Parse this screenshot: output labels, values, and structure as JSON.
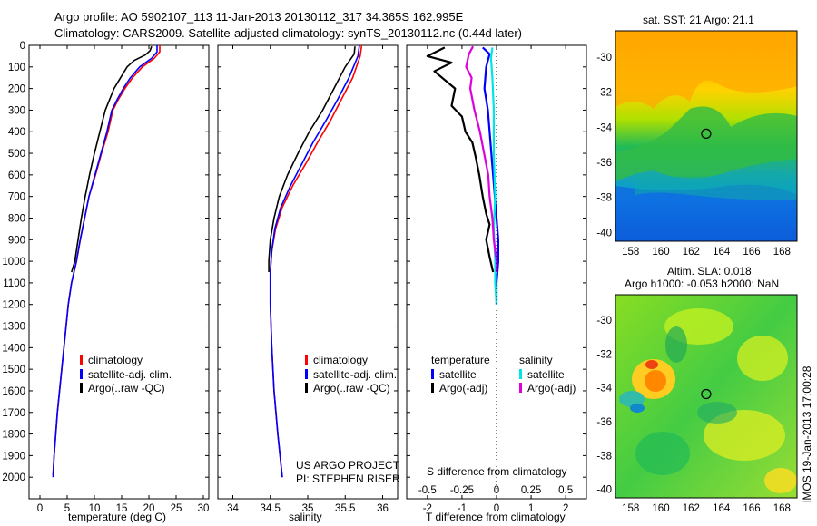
{
  "header": {
    "line1": "Argo profile: AO 5902107_113 11-Jan-2013 20130112_317 34.365S 162.995E",
    "line2": "Climatology: CARS2009. Satellite-adjusted climatology: synTS_20130112.nc (0.44d later)"
  },
  "footer": {
    "project_line1": "US ARGO PROJECT",
    "project_line2": "PI: STEPHEN RISER",
    "imos_stamp": "IMOS 19-Jan-2013 17:00:28"
  },
  "colors": {
    "climatology": "#ff0000",
    "satellite": "#0000ff",
    "argo": "#000000",
    "sal_satellite": "#00e5e5",
    "sal_argo": "#dd00dd"
  },
  "chart_data": [
    {
      "type": "line",
      "id": "temperature",
      "xlabel": "temperature (deg C)",
      "ylabel": "",
      "xlim": [
        -2,
        31
      ],
      "ylim": [
        2100,
        0
      ],
      "xticks": [
        "0",
        "5",
        "10",
        "15",
        "20",
        "25",
        "30"
      ],
      "xtick_values": [
        0,
        5,
        10,
        15,
        20,
        25,
        30
      ],
      "yticks": [
        "0",
        "100",
        "200",
        "300",
        "400",
        "500",
        "600",
        "700",
        "800",
        "900",
        "1000",
        "1100",
        "1200",
        "1300",
        "1400",
        "1500",
        "1600",
        "1700",
        "1800",
        "1900",
        "2000"
      ],
      "ytick_values": [
        0,
        100,
        200,
        300,
        400,
        500,
        600,
        700,
        800,
        900,
        1000,
        1100,
        1200,
        1300,
        1400,
        1500,
        1600,
        1700,
        1800,
        1900,
        2000
      ],
      "legend": [
        "climatology",
        "satellite-adj. clim.",
        "Argo(..raw -QC)"
      ],
      "series": [
        {
          "name": "climatology",
          "color": "#ff0000",
          "points": [
            [
              22,
              0
            ],
            [
              22,
              30
            ],
            [
              21,
              60
            ],
            [
              18.8,
              100
            ],
            [
              17,
              150
            ],
            [
              15.6,
              200
            ],
            [
              14.4,
              250
            ],
            [
              13.4,
              300
            ],
            [
              12.5,
              400
            ],
            [
              11.3,
              500
            ],
            [
              10.2,
              600
            ],
            [
              9,
              700
            ],
            [
              8.2,
              800
            ],
            [
              7.4,
              900
            ],
            [
              6.7,
              1000
            ],
            [
              5.8,
              1100
            ],
            [
              5.2,
              1200
            ],
            [
              4.8,
              1300
            ],
            [
              4.4,
              1400
            ],
            [
              4,
              1500
            ],
            [
              3.6,
              1600
            ],
            [
              3.2,
              1700
            ],
            [
              2.9,
              1800
            ],
            [
              2.6,
              1900
            ],
            [
              2.4,
              1990
            ]
          ]
        },
        {
          "name": "satellite-adj. clim.",
          "color": "#0000ff",
          "points": [
            [
              21.5,
              0
            ],
            [
              21.5,
              30
            ],
            [
              20.5,
              60
            ],
            [
              18.3,
              100
            ],
            [
              16.6,
              150
            ],
            [
              15.3,
              200
            ],
            [
              14.2,
              250
            ],
            [
              13.2,
              300
            ],
            [
              12.3,
              400
            ],
            [
              11.2,
              500
            ],
            [
              10.1,
              600
            ],
            [
              9,
              700
            ],
            [
              8.2,
              800
            ],
            [
              7.4,
              900
            ],
            [
              6.7,
              1000
            ],
            [
              5.8,
              1100
            ],
            [
              5.2,
              1200
            ],
            [
              4.8,
              1300
            ],
            [
              4.4,
              1400
            ],
            [
              4,
              1500
            ],
            [
              3.6,
              1600
            ],
            [
              3.2,
              1700
            ],
            [
              2.9,
              1800
            ],
            [
              2.6,
              1900
            ],
            [
              2.4,
              2000
            ]
          ]
        },
        {
          "name": "Argo(..raw -QC)",
          "color": "#000000",
          "points": [
            [
              20.5,
              5
            ],
            [
              20.2,
              25
            ],
            [
              19.3,
              45
            ],
            [
              17.3,
              70
            ],
            [
              16,
              100
            ],
            [
              14.8,
              150
            ],
            [
              13.6,
              200
            ],
            [
              12.8,
              250
            ],
            [
              12,
              300
            ],
            [
              11,
              400
            ],
            [
              10,
              500
            ],
            [
              9.1,
              600
            ],
            [
              8.3,
              700
            ],
            [
              7.6,
              800
            ],
            [
              7,
              900
            ],
            [
              6.4,
              1000
            ],
            [
              5.8,
              1050
            ]
          ]
        }
      ]
    },
    {
      "type": "line",
      "id": "salinity",
      "xlabel": "salinity",
      "xlim": [
        33.8,
        36.2
      ],
      "ylim": [
        2100,
        0
      ],
      "xticks": [
        "34",
        "34.5",
        "35",
        "35.5",
        "36"
      ],
      "xtick_values": [
        34,
        34.5,
        35,
        35.5,
        36
      ],
      "legend": [
        "climatology",
        "satellite-adj. clim.",
        "Argo(..raw -QC)"
      ],
      "series": [
        {
          "name": "climatology",
          "color": "#ff0000",
          "points": [
            [
              35.72,
              0
            ],
            [
              35.7,
              50
            ],
            [
              35.6,
              150
            ],
            [
              35.45,
              250
            ],
            [
              35.3,
              350
            ],
            [
              35.13,
              450
            ],
            [
              34.97,
              550
            ],
            [
              34.8,
              650
            ],
            [
              34.66,
              750
            ],
            [
              34.57,
              850
            ],
            [
              34.52,
              950
            ],
            [
              34.5,
              1050
            ],
            [
              34.5,
              1200
            ],
            [
              34.52,
              1400
            ],
            [
              34.55,
              1600
            ],
            [
              34.6,
              1800
            ],
            [
              34.66,
              2000
            ]
          ]
        },
        {
          "name": "satellite-adj. clim.",
          "color": "#0000ff",
          "points": [
            [
              35.69,
              0
            ],
            [
              35.67,
              50
            ],
            [
              35.55,
              150
            ],
            [
              35.4,
              250
            ],
            [
              35.24,
              350
            ],
            [
              35.07,
              450
            ],
            [
              34.92,
              550
            ],
            [
              34.77,
              650
            ],
            [
              34.64,
              750
            ],
            [
              34.56,
              850
            ],
            [
              34.52,
              950
            ],
            [
              34.5,
              1050
            ],
            [
              34.5,
              1200
            ],
            [
              34.52,
              1400
            ],
            [
              34.55,
              1600
            ],
            [
              34.6,
              1800
            ],
            [
              34.66,
              2000
            ]
          ]
        },
        {
          "name": "Argo(..raw -QC)",
          "color": "#000000",
          "points": [
            [
              35.63,
              5
            ],
            [
              35.62,
              40
            ],
            [
              35.5,
              100
            ],
            [
              35.35,
              200
            ],
            [
              35.2,
              300
            ],
            [
              35.02,
              400
            ],
            [
              34.87,
              500
            ],
            [
              34.73,
              600
            ],
            [
              34.62,
              700
            ],
            [
              34.55,
              800
            ],
            [
              34.5,
              900
            ],
            [
              34.48,
              1000
            ],
            [
              34.48,
              1050
            ]
          ]
        }
      ]
    },
    {
      "type": "line",
      "id": "differences",
      "xlabel": "T difference from climatology",
      "x2label": "S difference from climatology",
      "xlim": [
        -2.6,
        2.6
      ],
      "ylim": [
        2100,
        0
      ],
      "xticks": [
        "-2",
        "-1",
        "0",
        "1",
        "2"
      ],
      "xtick_values": [
        -2,
        -1,
        0,
        1,
        2
      ],
      "x2ticks": [
        "-0.5",
        "-0.25",
        "0",
        "0.25",
        "0.5"
      ],
      "x2tick_values": [
        -0.5,
        -0.25,
        0,
        0.25,
        0.5
      ],
      "legend_left_title": "temperature",
      "legend_right_title": "salinity",
      "legend": [
        "satellite",
        "Argo(-adj)",
        "satellite",
        "Argo(-adj)"
      ],
      "series": [
        {
          "name": "T satellite",
          "color": "#0000ff",
          "points": [
            [
              -0.4,
              10
            ],
            [
              -0.2,
              40
            ],
            [
              -0.3,
              100
            ],
            [
              -0.35,
              200
            ],
            [
              -0.25,
              300
            ],
            [
              -0.2,
              400
            ],
            [
              -0.15,
              500
            ],
            [
              -0.1,
              600
            ],
            [
              -0.05,
              700
            ],
            [
              0,
              800
            ],
            [
              0.05,
              900
            ],
            [
              0.05,
              1000
            ],
            [
              0,
              1100
            ],
            [
              0,
              1200
            ]
          ]
        },
        {
          "name": "T Argo(-adj)",
          "color": "#000000",
          "points": [
            [
              -1.5,
              10
            ],
            [
              -2,
              50
            ],
            [
              -1.3,
              80
            ],
            [
              -1.8,
              120
            ],
            [
              -1.2,
              200
            ],
            [
              -1.3,
              280
            ],
            [
              -1,
              330
            ],
            [
              -0.9,
              400
            ],
            [
              -0.7,
              450
            ],
            [
              -0.6,
              520
            ],
            [
              -0.5,
              600
            ],
            [
              -0.4,
              700
            ],
            [
              -0.3,
              780
            ],
            [
              -0.2,
              830
            ],
            [
              -0.3,
              900
            ],
            [
              -0.2,
              980
            ],
            [
              -0.1,
              1050
            ]
          ]
        },
        {
          "name": "S satellite",
          "color": "#00e5e5",
          "points": [
            [
              -0.03,
              10
            ],
            [
              -0.04,
              60
            ],
            [
              -0.03,
              150
            ],
            [
              -0.02,
              300
            ],
            [
              -0.02,
              500
            ],
            [
              -0.01,
              700
            ],
            [
              -0.02,
              850
            ],
            [
              -0.01,
              1000
            ],
            [
              -0.01,
              1100
            ],
            [
              0,
              1200
            ]
          ]
        },
        {
          "name": "S Argo(-adj)",
          "color": "#dd00dd",
          "points": [
            [
              -0.17,
              5
            ],
            [
              -0.2,
              40
            ],
            [
              -0.22,
              100
            ],
            [
              -0.18,
              150
            ],
            [
              -0.19,
              200
            ],
            [
              -0.16,
              300
            ],
            [
              -0.12,
              400
            ],
            [
              -0.09,
              500
            ],
            [
              -0.06,
              600
            ],
            [
              -0.05,
              700
            ],
            [
              -0.03,
              800
            ],
            [
              -0.02,
              900
            ],
            [
              0,
              1000
            ],
            [
              0,
              1050
            ]
          ]
        }
      ]
    },
    {
      "type": "heatmap",
      "id": "sst_map",
      "title": "sat. SST: 21  Argo: 21.1",
      "xlim": [
        157,
        169
      ],
      "ylim": [
        -40.5,
        -28.5
      ],
      "xticks": [
        "158",
        "160",
        "162",
        "164",
        "166",
        "168"
      ],
      "xtick_values": [
        158,
        160,
        162,
        164,
        166,
        168
      ],
      "yticks": [
        "-30",
        "-32",
        "-34",
        "-36",
        "-38",
        "-40"
      ],
      "ytick_values": [
        -30,
        -32,
        -34,
        -36,
        -38,
        -40
      ],
      "marker": {
        "lon": 162.995,
        "lat": -34.365
      }
    },
    {
      "type": "heatmap",
      "id": "sla_map",
      "title": "Altim. SLA: 0.018",
      "subtitle": "Argo h1000: -0.053 h2000: NaN",
      "xlim": [
        157,
        169
      ],
      "ylim": [
        -40.5,
        -28.5
      ],
      "xticks": [
        "158",
        "160",
        "162",
        "164",
        "166",
        "168"
      ],
      "xtick_values": [
        158,
        160,
        162,
        164,
        166,
        168
      ],
      "yticks": [
        "-30",
        "-32",
        "-34",
        "-36",
        "-38",
        "-40"
      ],
      "ytick_values": [
        -30,
        -32,
        -34,
        -36,
        -38,
        -40
      ],
      "marker": {
        "lon": 162.995,
        "lat": -34.365
      }
    }
  ]
}
